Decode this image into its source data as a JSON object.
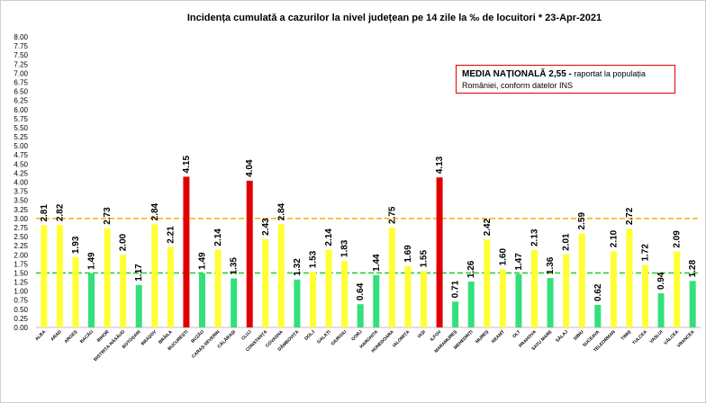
{
  "chart_data": {
    "type": "bar",
    "title": "Incidența cumulată a cazurilor la nivel județean pe 14 zile la ‰ de locuitori *   23-Apr-2021",
    "xlabel": "",
    "ylabel": "",
    "ylim": [
      0,
      8
    ],
    "yticks": [
      "0.00",
      "0.25",
      "0.50",
      "0.75",
      "1.00",
      "1.25",
      "1.50",
      "1.75",
      "2.00",
      "2.25",
      "2.50",
      "2.75",
      "3.00",
      "3.25",
      "3.50",
      "3.75",
      "4.00",
      "4.25",
      "4.50",
      "4.75",
      "5.00",
      "5.25",
      "5.50",
      "5.75",
      "6.00",
      "6.25",
      "6.50",
      "6.75",
      "7.00",
      "7.25",
      "7.50",
      "7.75",
      "8.00"
    ],
    "categories": [
      "ALBA",
      "ARAD",
      "ARGEȘ",
      "BACĂU",
      "BIHOR",
      "BISTRIȚA-NĂSĂUD",
      "BOTOȘANI",
      "BRAȘOV",
      "BRĂILA",
      "BUCUREȘTI",
      "BUZĂU",
      "CARAȘ-SEVERIN",
      "CĂLĂRAȘI",
      "CLUJ",
      "CONSTANȚA",
      "COVASNA",
      "DÂMBOVIȚA",
      "DOLJ",
      "GALAȚI",
      "GIURGIU",
      "GORJ",
      "HARGHITA",
      "HUNEDOARA",
      "IALOMIȚA",
      "IAȘI",
      "ILFOV",
      "MARAMUREȘ",
      "MEHEDINȚI",
      "MUREȘ",
      "NEAMȚ",
      "OLT",
      "PRAHOVA",
      "SATU MARE",
      "SĂLAJ",
      "SIBIU",
      "SUCEAVA",
      "TELEORMAN",
      "TIMIȘ",
      "TULCEA",
      "VASLUI",
      "VÂLCEA",
      "VRANCEA"
    ],
    "values": [
      2.81,
      2.82,
      1.93,
      1.49,
      2.73,
      2.0,
      1.17,
      2.84,
      2.21,
      4.15,
      1.49,
      2.14,
      1.35,
      4.04,
      2.43,
      2.84,
      1.32,
      1.53,
      2.14,
      1.83,
      0.64,
      1.44,
      2.75,
      1.69,
      1.55,
      4.13,
      0.71,
      1.26,
      2.42,
      1.6,
      1.47,
      2.13,
      1.36,
      2.01,
      2.59,
      0.62,
      2.1,
      2.72,
      1.72,
      0.94,
      2.09,
      1.28
    ],
    "value_labels": [
      "2.81",
      "2.82",
      "1.93",
      "1.49",
      "2.73",
      "2.00",
      "1.17",
      "2.84",
      "2.21",
      "4.15",
      "1.49",
      "2.14",
      "1.35",
      "4.04",
      "2.43",
      "2.84",
      "1.32",
      "1.53",
      "2.14",
      "1.83",
      "0.64",
      "1.44",
      "2.75",
      "1.69",
      "1.55",
      "4.13",
      "0.71",
      "1.26",
      "2.42",
      "1.60",
      "1.47",
      "2.13",
      "1.36",
      "2.01",
      "2.59",
      "0.62",
      "2.10",
      "2.72",
      "1.72",
      "0.94",
      "2.09",
      "1.28"
    ],
    "thresholds": [
      1.5,
      3.0
    ],
    "colors": {
      "green": "#33e07a",
      "yellow": "#ffff33",
      "red": "#e00000",
      "line_orange": "#f0b400",
      "line_green": "#33cc33"
    },
    "grid": false,
    "legend": "none",
    "reference_lines": [
      {
        "value": 3.0,
        "color": "#f0b400",
        "style": "dashed"
      },
      {
        "value": 1.5,
        "color": "#33cc33",
        "style": "dashed"
      }
    ]
  },
  "callout": {
    "highlight": "MEDIA NAȚIONALĂ  2,55 -",
    "text": " raportat la populația României, conform datelor INS"
  }
}
